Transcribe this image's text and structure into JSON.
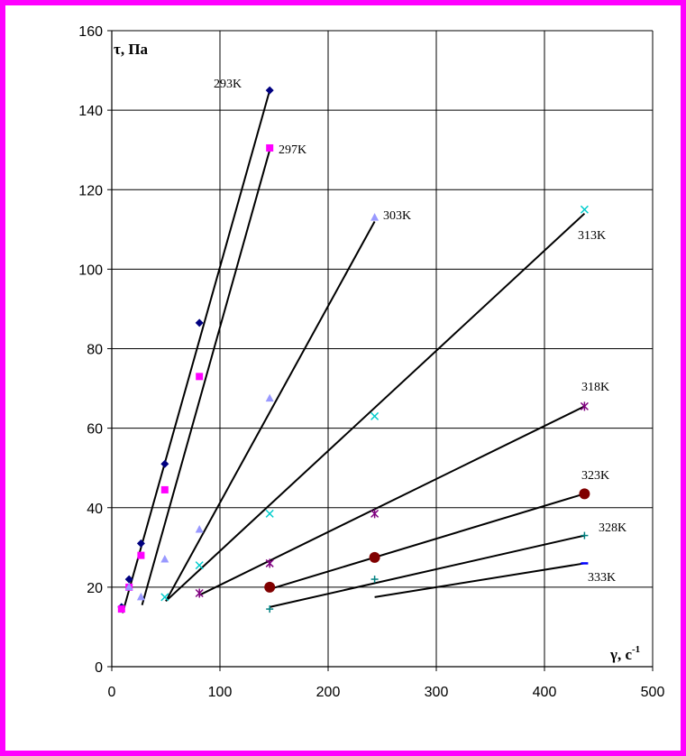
{
  "chart_data": {
    "type": "scatter",
    "ylabel": "τ, Па",
    "xlabel": "γ, с",
    "xlabel_sup": "-1",
    "xlim": [
      0,
      500
    ],
    "ylim": [
      0,
      160
    ],
    "xticks": [
      0,
      100,
      200,
      300,
      400,
      500
    ],
    "yticks": [
      0,
      20,
      40,
      60,
      80,
      100,
      120,
      140,
      160
    ],
    "grid": true,
    "series": [
      {
        "name": "293K",
        "color": "#000080",
        "marker": "diamond",
        "points": [
          [
            9,
            15
          ],
          [
            16,
            22
          ],
          [
            27,
            31
          ],
          [
            49,
            51
          ],
          [
            81,
            86.5
          ],
          [
            146,
            145
          ]
        ],
        "trend": [
          [
            10,
            13.5
          ],
          [
            146,
            145
          ]
        ]
      },
      {
        "name": "297K",
        "color": "#ff00ff",
        "marker": "square",
        "points": [
          [
            9,
            14.5
          ],
          [
            16,
            20
          ],
          [
            27,
            28
          ],
          [
            49,
            44.5
          ],
          [
            81,
            73
          ],
          [
            146,
            130.5
          ]
        ],
        "trend": [
          [
            28,
            15.5
          ],
          [
            146,
            130
          ]
        ]
      },
      {
        "name": "303K",
        "color": "#9999ff",
        "marker": "triangle",
        "points": [
          [
            16,
            20
          ],
          [
            27,
            17.5
          ],
          [
            49,
            27
          ],
          [
            81,
            34.5
          ],
          [
            146,
            67.5
          ],
          [
            243,
            113
          ]
        ],
        "trend": [
          [
            50,
            16.5
          ],
          [
            243,
            112
          ]
        ]
      },
      {
        "name": "313K",
        "color": "#00cccc",
        "marker": "x",
        "points": [
          [
            49,
            17.5
          ],
          [
            81,
            25.5
          ],
          [
            146,
            38.5
          ],
          [
            243,
            63
          ],
          [
            437,
            115
          ]
        ],
        "trend": [
          [
            50,
            16.5
          ],
          [
            437,
            114
          ]
        ]
      },
      {
        "name": "318K",
        "color": "#800080",
        "marker": "star",
        "points": [
          [
            81,
            18.5
          ],
          [
            146,
            26
          ],
          [
            243,
            38.5
          ],
          [
            437,
            65.5
          ]
        ],
        "trend": [
          [
            81,
            18
          ],
          [
            437,
            65.5
          ]
        ]
      },
      {
        "name": "323K",
        "color": "#800000",
        "marker": "circle",
        "points": [
          [
            146,
            20
          ],
          [
            243,
            27.5
          ],
          [
            437,
            43.5
          ]
        ],
        "trend": [
          [
            146,
            19.5
          ],
          [
            437,
            43.5
          ]
        ]
      },
      {
        "name": "328K",
        "color": "#008080",
        "marker": "plus",
        "points": [
          [
            146,
            14.5
          ],
          [
            243,
            22
          ],
          [
            437,
            33
          ]
        ],
        "trend": [
          [
            146,
            15
          ],
          [
            437,
            33
          ]
        ]
      },
      {
        "name": "333K",
        "color": "#0000ff",
        "marker": "dash",
        "points": [
          [
            437,
            26
          ]
        ],
        "trend": [
          [
            243,
            17.5
          ],
          [
            437,
            26
          ]
        ]
      }
    ]
  }
}
